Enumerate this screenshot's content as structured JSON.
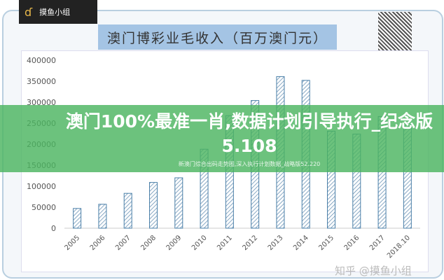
{
  "logo": {
    "text": "摸鱼小组"
  },
  "headline": "澳门100%最准一肖,数据计划引导执行_纪念版5.108",
  "subheadline": "新澳门综合出码走势图,深入执行计划数据_战略版52.220",
  "watermark": "知乎 @摸鱼小组",
  "chart_data": {
    "type": "bar",
    "title": "澳门博彩业毛收入（百万澳门元）",
    "categories": [
      "2005",
      "2006",
      "2007",
      "2008",
      "2009",
      "2010",
      "2011",
      "2012",
      "2013",
      "2014",
      "2015",
      "2016",
      "2017",
      "2018.10"
    ],
    "values": [
      47000,
      57000,
      83000,
      109000,
      120000,
      188000,
      268000,
      304000,
      361000,
      352000,
      231000,
      224000,
      266000,
      250000
    ],
    "ylim": [
      0,
      400000
    ],
    "yticks": [
      "0",
      "50000",
      "100000",
      "150000",
      "200000",
      "250000",
      "300000",
      "350000",
      "400000"
    ],
    "grid": false,
    "bar_color": "#4a7fa8",
    "bar_fill": "hatched"
  }
}
